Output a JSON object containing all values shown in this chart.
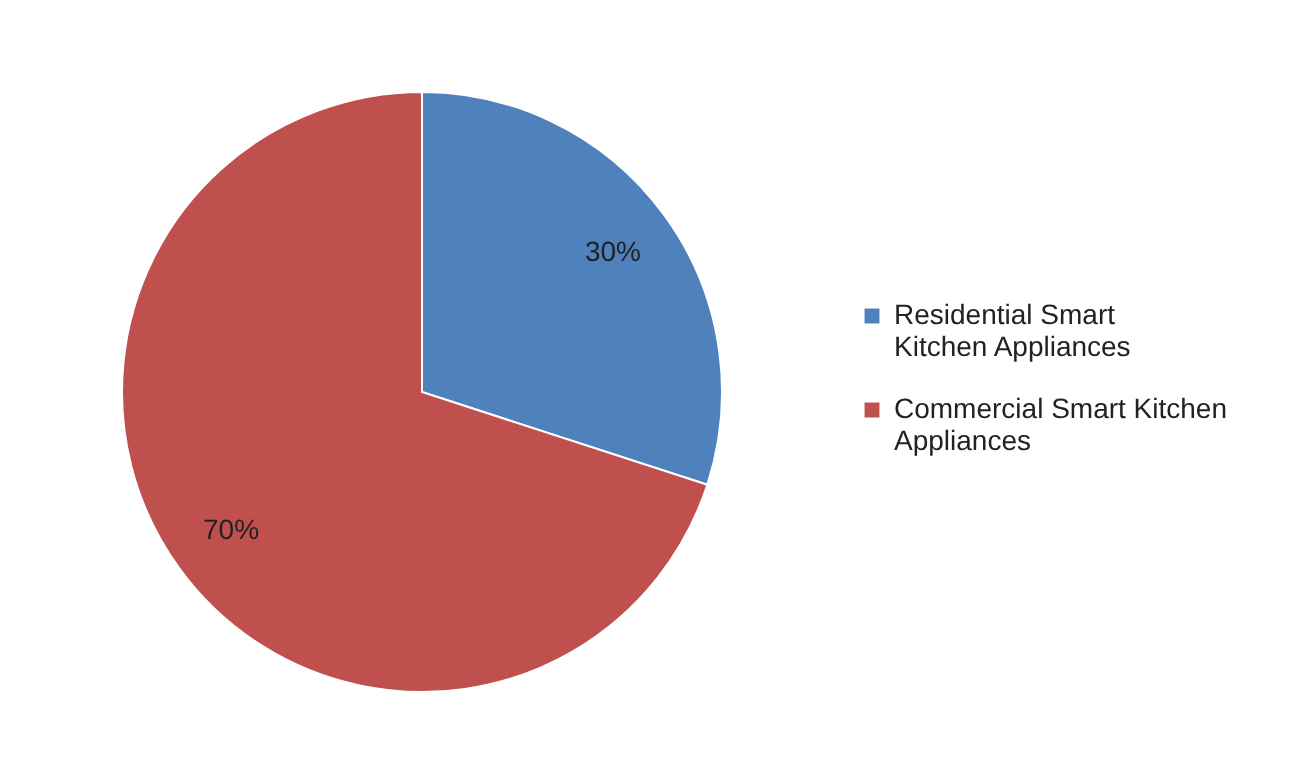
{
  "chart_data": {
    "type": "pie",
    "categories": [
      "Residential Smart Kitchen Appliances",
      "Commercial Smart Kitchen Appliances"
    ],
    "values": [
      30,
      70
    ],
    "colors": [
      "#4f81bd",
      "#c0504d"
    ],
    "value_labels": [
      "30%",
      "70%"
    ],
    "legend": "right"
  }
}
